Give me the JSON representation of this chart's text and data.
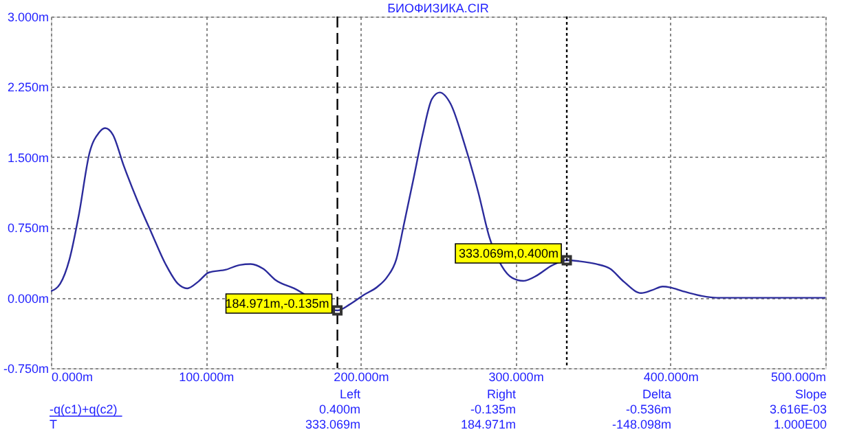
{
  "chart_data": {
    "type": "line",
    "title": "БИОФИЗИКА.CIR",
    "x": [
      0,
      6,
      12,
      18,
      25,
      31,
      35,
      40,
      47,
      56,
      65,
      74,
      82,
      88,
      95,
      102,
      113,
      122,
      129,
      137,
      145,
      157,
      184.971,
      193,
      202,
      211,
      217,
      223,
      228,
      234,
      240,
      246,
      251,
      258,
      267,
      276,
      283,
      291,
      298,
      305,
      314,
      323,
      333.069,
      341,
      352,
      361,
      370,
      381,
      388,
      395,
      400,
      408,
      420,
      430,
      500
    ],
    "series": [
      {
        "name": "-q(c1)+q(c2)",
        "color": "#2b2b9c",
        "values": [
          0.07,
          0.15,
          0.41,
          0.88,
          1.55,
          1.76,
          1.81,
          1.74,
          1.41,
          1.03,
          0.69,
          0.36,
          0.15,
          0.1,
          0.17,
          0.27,
          0.3,
          0.35,
          0.36,
          0.31,
          0.19,
          0.1,
          -0.135,
          -0.07,
          0.03,
          0.12,
          0.22,
          0.41,
          0.79,
          1.26,
          1.74,
          2.12,
          2.19,
          2.07,
          1.64,
          1.12,
          0.65,
          0.34,
          0.21,
          0.18,
          0.24,
          0.34,
          0.4,
          0.39,
          0.36,
          0.31,
          0.17,
          0.05,
          0.08,
          0.12,
          0.11,
          0.07,
          0.02,
          0,
          0
        ]
      }
    ],
    "xlim": [
      0,
      500
    ],
    "xticks": [
      {
        "value": 0,
        "label": "0.000m"
      },
      {
        "value": 100,
        "label": "100.000m"
      },
      {
        "value": 200,
        "label": "200.000m"
      },
      {
        "value": 300,
        "label": "300.000m"
      },
      {
        "value": 400,
        "label": "400.000m"
      },
      {
        "value": 500,
        "label": "500.000m"
      }
    ],
    "ylim": [
      -0.75,
      3.0
    ],
    "yticks": [
      {
        "value": -0.75,
        "label": "-0.750m"
      },
      {
        "value": 0,
        "label": "0.000m"
      },
      {
        "value": 0.75,
        "label": "0.750m"
      },
      {
        "value": 1.5,
        "label": "1.500m"
      },
      {
        "value": 2.25,
        "label": "2.250m"
      },
      {
        "value": 3.0,
        "label": "3.000m"
      }
    ],
    "grid": true,
    "legend": false,
    "line_style": "solid",
    "marker": "none",
    "ref_lines": [
      {
        "axis": "x",
        "value": 184.971,
        "color": "#000000",
        "line_style": "dashed"
      },
      {
        "axis": "x",
        "value": 333.069,
        "color": "#000000",
        "line_style": "dotted"
      }
    ],
    "annotations": [
      {
        "text": "184.971m,-0.135m",
        "x": 184.971,
        "y": -0.135
      },
      {
        "text": "333.069m,0.400m",
        "x": 333.069,
        "y": 0.4
      },
      "Left",
      "Right",
      "Delta",
      "Slope",
      "0.400m",
      "-0.135m",
      "-0.536m",
      "3.616E-03",
      "T",
      "333.069m",
      "184.971m",
      "-148.098m",
      "1.000E00"
    ]
  }
}
